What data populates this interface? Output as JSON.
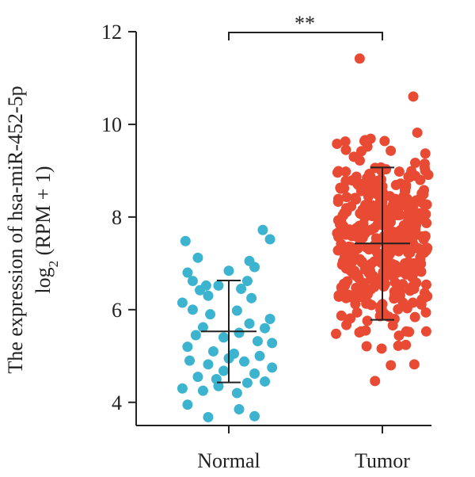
{
  "chart_data": {
    "type": "scatter",
    "subtype": "jitter-strip-with-mean-sd",
    "ylabel_line1": "The expression of hsa-miR-452-5p",
    "ylabel_line2_prefix": "log",
    "ylabel_line2_sub": "2",
    "ylabel_line2_suffix": " (RPM + 1)",
    "xlabel": "",
    "ylim": [
      3.5,
      12
    ],
    "yticks": [
      4,
      6,
      8,
      10,
      12
    ],
    "grid": false,
    "significance": "**",
    "categories": [
      "Normal",
      "Tumor"
    ],
    "series": [
      {
        "color": "#3cb4cf",
        "mean": 5.53,
        "sd_low": 4.43,
        "sd_high": 6.63,
        "points": [
          [
            -0.42,
            7.48
          ],
          [
            0.33,
            7.72
          ],
          [
            0.4,
            7.52
          ],
          [
            0.2,
            7.05
          ],
          [
            -0.3,
            7.12
          ],
          [
            0.25,
            6.92
          ],
          [
            -0.4,
            6.8
          ],
          [
            0.0,
            6.84
          ],
          [
            -0.35,
            6.62
          ],
          [
            -0.22,
            6.52
          ],
          [
            0.18,
            6.62
          ],
          [
            -0.1,
            6.52
          ],
          [
            -0.28,
            6.42
          ],
          [
            0.12,
            6.45
          ],
          [
            -0.45,
            6.15
          ],
          [
            -0.2,
            6.3
          ],
          [
            0.22,
            6.25
          ],
          [
            -0.35,
            6.0
          ],
          [
            -0.18,
            5.9
          ],
          [
            0.08,
            5.98
          ],
          [
            0.4,
            5.8
          ],
          [
            0.2,
            5.7
          ],
          [
            -0.25,
            5.62
          ],
          [
            0.35,
            5.6
          ],
          [
            0.1,
            5.5
          ],
          [
            -0.32,
            5.45
          ],
          [
            -0.05,
            5.4
          ],
          [
            0.28,
            5.32
          ],
          [
            -0.4,
            5.2
          ],
          [
            0.42,
            5.28
          ],
          [
            -0.15,
            5.1
          ],
          [
            0.05,
            5.05
          ],
          [
            0.3,
            5.0
          ],
          [
            -0.38,
            4.9
          ],
          [
            -0.2,
            4.82
          ],
          [
            0.15,
            4.88
          ],
          [
            0.42,
            4.75
          ],
          [
            -0.05,
            4.68
          ],
          [
            0.25,
            4.62
          ],
          [
            -0.3,
            4.55
          ],
          [
            -0.12,
            4.5
          ],
          [
            0.35,
            4.45
          ],
          [
            0.18,
            4.42
          ],
          [
            -0.45,
            4.3
          ],
          [
            -0.25,
            4.25
          ],
          [
            0.08,
            4.2
          ],
          [
            -0.4,
            3.95
          ],
          [
            0.1,
            3.85
          ],
          [
            -0.2,
            3.68
          ],
          [
            0.25,
            3.7
          ],
          [
            -0.1,
            4.35
          ],
          [
            0.0,
            4.95
          ]
        ]
      },
      {
        "color": "#e84a33",
        "mean": 7.43,
        "sd_low": 5.78,
        "sd_high": 9.07,
        "points": []
      }
    ]
  }
}
